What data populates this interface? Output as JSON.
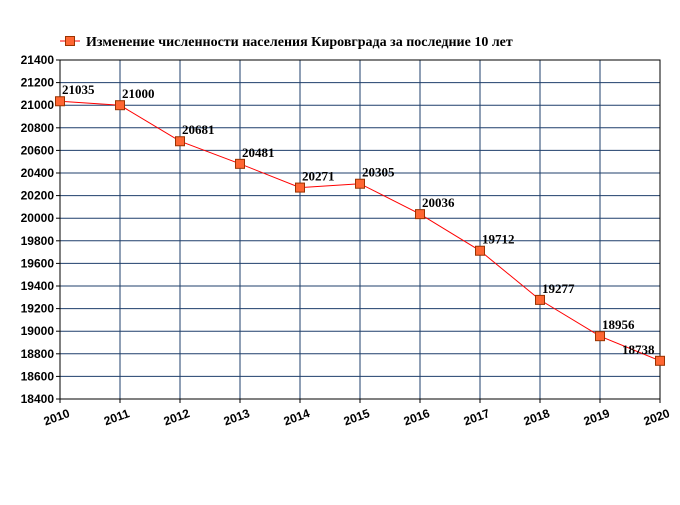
{
  "chart_data": {
    "type": "line",
    "title": "",
    "xlabel": "",
    "ylabel": "",
    "ylim": [
      18400,
      21400
    ],
    "ystep": 200,
    "grid": true,
    "legend_position": "top-left",
    "x": [
      "2010",
      "2011",
      "2012",
      "2013",
      "2014",
      "2015",
      "2016",
      "2017",
      "2018",
      "2019",
      "2020"
    ],
    "series": [
      {
        "name": "Изменение численности населения Кировграда за последние 10 лет",
        "values": [
          21035,
          21000,
          20681,
          20481,
          20271,
          20305,
          20036,
          19712,
          19277,
          18956,
          18738
        ],
        "labels": [
          "21035",
          "21000",
          "20681",
          "20481",
          "20271",
          "20305",
          "20036",
          "19712",
          "19277",
          "18956",
          "18738"
        ]
      }
    ],
    "y_tick_labels": [
      "21400",
      "21200",
      "21000",
      "20800",
      "20600",
      "20400",
      "20200",
      "20000",
      "19800",
      "19600",
      "19400",
      "19200",
      "19000",
      "18800",
      "18600",
      "18400"
    ],
    "colors": {
      "line": "#ff0000",
      "marker_fill": "#ff6633",
      "marker_stroke": "#993300",
      "grid": "#1f3f6b",
      "axis": "#000000"
    }
  }
}
